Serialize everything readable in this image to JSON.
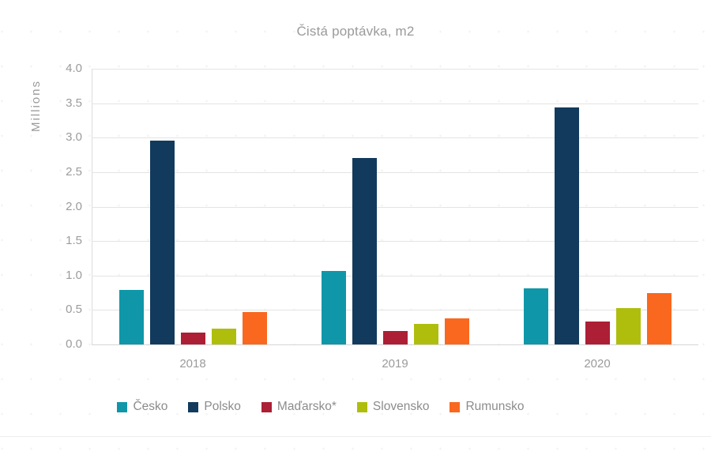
{
  "chart_data": {
    "type": "bar",
    "title": "Čistá poptávka, m2",
    "ylabel": "Millions",
    "xlabel": "",
    "categories": [
      "2018",
      "2019",
      "2020"
    ],
    "series": [
      {
        "name": "Česko",
        "color": "#0F97A9",
        "values": [
          0.79,
          1.07,
          0.81
        ]
      },
      {
        "name": "Polsko",
        "color": "#123A5C",
        "values": [
          2.96,
          2.7,
          3.44
        ]
      },
      {
        "name": "Maďarsko*",
        "color": "#AC1F35",
        "values": [
          0.17,
          0.19,
          0.33
        ]
      },
      {
        "name": "Slovensko",
        "color": "#AFBE0D",
        "values": [
          0.23,
          0.3,
          0.53
        ]
      },
      {
        "name": "Rumunsko",
        "color": "#F9681E",
        "values": [
          0.47,
          0.38,
          0.75
        ]
      }
    ],
    "ylim": [
      0,
      4
    ],
    "ytick_step": 0.5,
    "ytick_labels": [
      "0.0",
      "0.5",
      "1.0",
      "1.5",
      "2.0",
      "2.5",
      "3.0",
      "3.5",
      "4.0"
    ],
    "grid": "horizontal",
    "legend_position": "bottom",
    "text_color": "#9a9a9a",
    "gridline_color": "#e4e4e4"
  }
}
